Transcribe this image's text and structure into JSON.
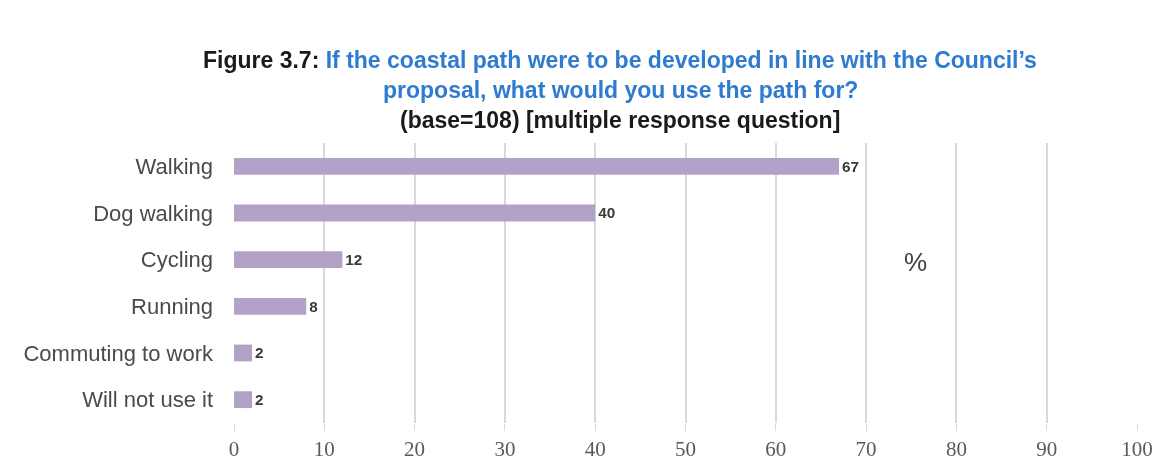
{
  "chart_data": {
    "type": "bar",
    "orientation": "horizontal",
    "title": "Figure 3.7: If the coastal path were to be developed in line with the Council’s proposal, what would you use the path for?",
    "subtitle": "(base=108) [multiple response question]",
    "categories": [
      "Walking",
      "Dog walking",
      "Cycling",
      "Running",
      "Commuting to work",
      "Will not use it"
    ],
    "values": [
      67,
      40,
      12,
      8,
      2,
      2
    ],
    "color": "#b3a2c7",
    "xlim": [
      0,
      100
    ],
    "xticks": [
      0,
      10,
      20,
      30,
      40,
      50,
      60,
      70,
      80,
      90,
      100
    ],
    "grid": "x",
    "data_labels": true,
    "annotations": [
      "%"
    ]
  }
}
